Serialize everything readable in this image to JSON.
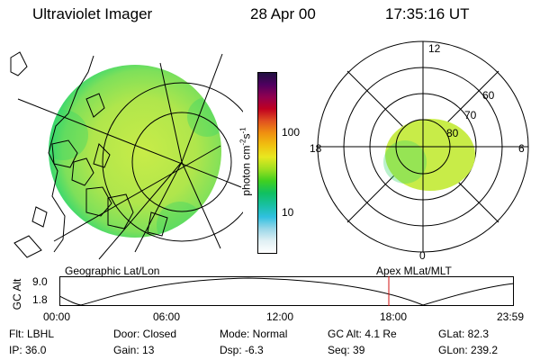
{
  "header": {
    "instrument": "Ultraviolet Imager",
    "date": "28 Apr 00",
    "time": "17:35:16 UT"
  },
  "left_panel": {
    "caption": "Geographic Lat/Lon",
    "colors": {
      "fill_main": "#b8e84a",
      "fill_edge": "#2fd36b",
      "grid": "#000000"
    }
  },
  "colorbar": {
    "tick_labels": [
      "100",
      "10"
    ],
    "unit_label": "photon cm",
    "unit_sup1": "-2",
    "unit_s": "s",
    "unit_sup2": "-1",
    "colors": [
      "#ffffff",
      "#e0f0f4",
      "#9ad7e8",
      "#30c0e0",
      "#18c0a0",
      "#10c060",
      "#40d020",
      "#a0e020",
      "#e8e820",
      "#f0c010",
      "#f09010",
      "#e05020",
      "#c00020",
      "#900050",
      "#500060",
      "#201040"
    ]
  },
  "right_panel": {
    "caption": "Apex MLat/MLT",
    "mlt_labels": {
      "top": "12",
      "left": "18",
      "right": "6",
      "bottom": "0"
    },
    "lat_labels": [
      "60",
      "70",
      "80"
    ]
  },
  "timeline": {
    "axis_title": "GC Alt",
    "y_labels": [
      "9.0",
      "1.8"
    ],
    "x_labels": [
      "00:00",
      "06:00",
      "12:00",
      "18:00",
      "23:59"
    ],
    "marker_color": "#d01010"
  },
  "footer": {
    "rows": [
      [
        "Flt: LBHL",
        "Door: Closed",
        "Mode: Normal",
        "GC Alt: 4.1 Re",
        "GLat: 82.3"
      ],
      [
        "IP: 36.0",
        "Gain: 13",
        "Dsp: -6.3",
        "Seq: 39",
        "GLon: 239.2"
      ]
    ]
  }
}
